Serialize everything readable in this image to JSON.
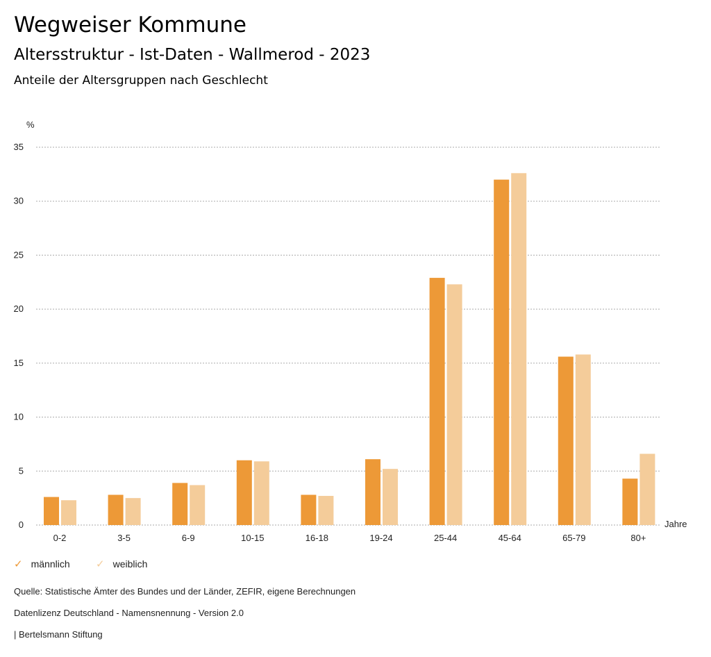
{
  "header": {
    "title": "Wegweiser Kommune",
    "subtitle": "Altersstruktur - Ist-Daten - Wallmerod - 2023",
    "chart_title": "Anteile der Altersgruppen nach Geschlecht"
  },
  "chart_data": {
    "type": "bar",
    "title": "Anteile der Altersgruppen nach Geschlecht",
    "ylabel": "%",
    "xlabel": "Jahre",
    "ylim": [
      0,
      35
    ],
    "yticks": [
      0,
      5,
      10,
      15,
      20,
      25,
      30,
      35
    ],
    "categories": [
      "0-2",
      "3-5",
      "6-9",
      "10-15",
      "16-18",
      "19-24",
      "25-44",
      "45-64",
      "65-79",
      "80+"
    ],
    "series": [
      {
        "name": "männlich",
        "color": "#ED9937",
        "values": [
          2.6,
          2.8,
          3.9,
          6.0,
          2.8,
          6.1,
          22.9,
          32.0,
          15.6,
          4.3
        ]
      },
      {
        "name": "weiblich",
        "color": "#F4CC9A",
        "values": [
          2.3,
          2.5,
          3.7,
          5.9,
          2.7,
          5.2,
          22.3,
          32.6,
          15.8,
          6.6
        ]
      }
    ],
    "grid": true,
    "legend": "bottom-left"
  },
  "footer": {
    "source": "Quelle: Statistische Ämter des Bundes und der Länder, ZEFIR, eigene Berechnungen",
    "license": "Datenlizenz Deutschland - Namensnennung - Version 2.0",
    "brand": "| Bertelsmann Stiftung"
  }
}
